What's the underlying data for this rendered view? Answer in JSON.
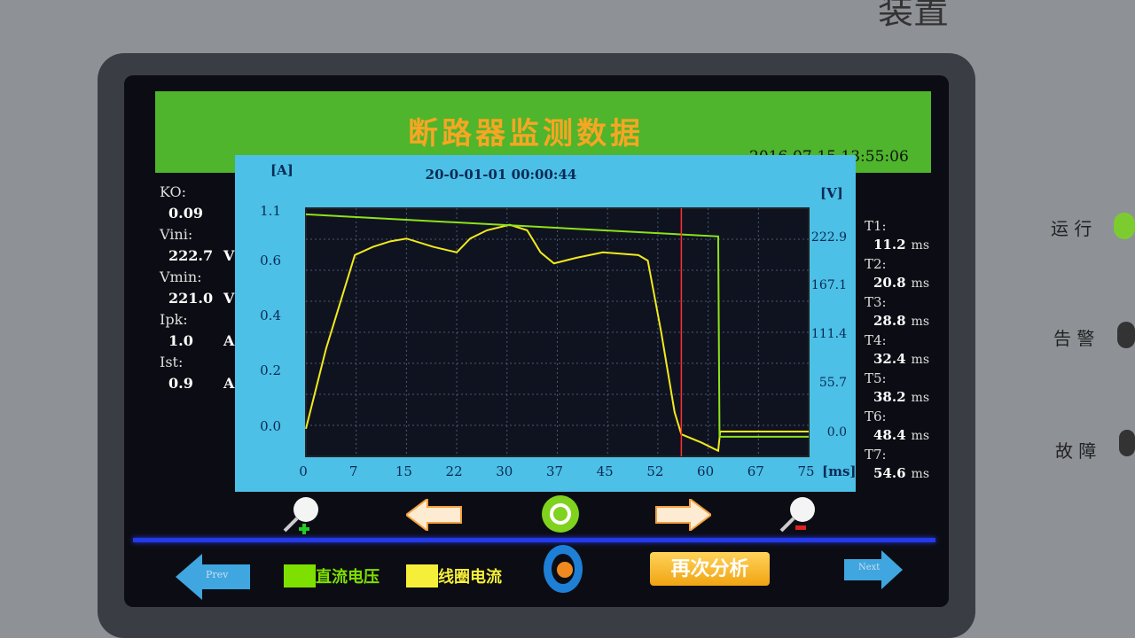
{
  "header": {
    "title": "断路器监测数据",
    "datetime": "2016-07-15 13:55:06"
  },
  "params": [
    {
      "label": "KO:",
      "value": "0.09",
      "unit": ""
    },
    {
      "label": "Vini:",
      "value": "222.7",
      "unit": "V"
    },
    {
      "label": "Vmin:",
      "value": "221.0",
      "unit": "V"
    },
    {
      "label": "Ipk:",
      "value": "1.0",
      "unit": "A"
    },
    {
      "label": "Ist:",
      "value": "0.9",
      "unit": "A"
    }
  ],
  "times": [
    {
      "label": "T1:",
      "value": "11.2",
      "unit": "ms"
    },
    {
      "label": "T2:",
      "value": "20.8",
      "unit": "ms"
    },
    {
      "label": "T3:",
      "value": "28.8",
      "unit": "ms"
    },
    {
      "label": "T4:",
      "value": "32.4",
      "unit": "ms"
    },
    {
      "label": "T5:",
      "value": "38.2",
      "unit": "ms"
    },
    {
      "label": "T6:",
      "value": "48.4",
      "unit": "ms"
    },
    {
      "label": "T7:",
      "value": "54.6",
      "unit": "ms"
    }
  ],
  "chart_data": {
    "type": "line",
    "record_time": "20-0-01-01 00:00:44",
    "xlabel": "[ms]",
    "ylabel_left": "[A]",
    "ylabel_right": "[V]",
    "x_ticks": [
      "0",
      "7",
      "15",
      "22",
      "30",
      "37",
      "45",
      "52",
      "60",
      "67",
      "75"
    ],
    "y_left_ticks": [
      "0.0",
      "0.2",
      "0.4",
      "0.6",
      "1.1"
    ],
    "y_right_ticks": [
      "0.0",
      "55.7",
      "111.4",
      "167.1",
      "222.9"
    ],
    "xlim": [
      0,
      75
    ],
    "grid": true,
    "cursor_ms": 56,
    "series": [
      {
        "name": "线圈电流",
        "axis": "left",
        "color": "#f2ea1c",
        "x": [
          0,
          3,
          7.3,
          10,
          12.6,
          15,
          19,
          22.5,
          24.5,
          27,
          30.4,
          33,
          35,
          37,
          40.3,
          44.3,
          49.6,
          51,
          53,
          55,
          56,
          59,
          61.5,
          61.8,
          75
        ],
        "y": [
          -0.01,
          0.28,
          0.62,
          0.65,
          0.67,
          0.68,
          0.65,
          0.63,
          0.68,
          0.71,
          0.73,
          0.71,
          0.63,
          0.59,
          0.61,
          0.63,
          0.62,
          0.6,
          0.34,
          0.05,
          -0.03,
          -0.06,
          -0.09,
          -0.02,
          -0.02
        ]
      },
      {
        "name": "直流电压",
        "axis": "right",
        "color": "#8ee21a",
        "x": [
          0,
          61.5,
          61.7,
          75
        ],
        "y": [
          248,
          222.8,
          -6,
          -6
        ]
      }
    ]
  },
  "toolbar": {
    "zoom_in": "zoom-in",
    "left": "arrow-left",
    "refresh": "refresh",
    "right": "arrow-right",
    "zoom_out": "zoom-out"
  },
  "footer": {
    "prev": "Prev",
    "next": "Next",
    "legend_voltage": "直流电压",
    "legend_current": "线圈电流",
    "reanalyze": "再次分析",
    "voltage_color": "#7ee000",
    "current_color": "#f5ef3a"
  },
  "panel": {
    "run": "运 行",
    "alarm": "告 警",
    "fault": "故 障",
    "brand_fragment": "装置"
  }
}
